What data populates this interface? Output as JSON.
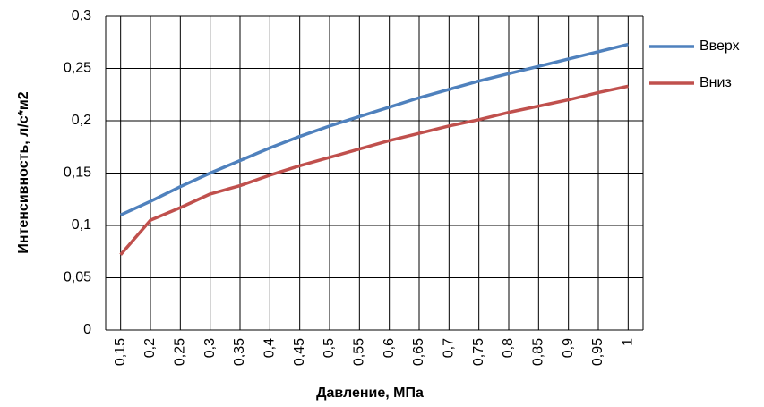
{
  "chart_data": {
    "type": "line",
    "x_label": "Давление, МПа",
    "y_label": "Интенсивность, л/с*м2",
    "categories": [
      "0,15",
      "0,2",
      "0,25",
      "0,3",
      "0,35",
      "0,4",
      "0,45",
      "0,5",
      "0,55",
      "0,6",
      "0,65",
      "0,7",
      "0,75",
      "0,8",
      "0,85",
      "0,9",
      "0,95",
      "1"
    ],
    "series": [
      {
        "name": "Вверх",
        "color": "#4f81bd",
        "values": [
          0.11,
          0.123,
          0.137,
          0.15,
          0.162,
          0.174,
          0.185,
          0.195,
          0.204,
          0.213,
          0.222,
          0.23,
          0.238,
          0.245,
          0.252,
          0.259,
          0.266,
          0.273
        ]
      },
      {
        "name": "Вниз",
        "color": "#c0504d",
        "values": [
          0.072,
          0.105,
          0.117,
          0.13,
          0.138,
          0.148,
          0.157,
          0.165,
          0.173,
          0.181,
          0.188,
          0.195,
          0.201,
          0.208,
          0.214,
          0.22,
          0.227,
          0.233
        ]
      }
    ],
    "ylim": [
      0,
      0.3
    ],
    "yticks": [
      0,
      {
        "value": 0.05,
        "label": "0,05"
      },
      {
        "value": 0.1,
        "label": "0,1"
      },
      {
        "value": 0.15,
        "label": "0,15"
      },
      {
        "value": 0.2,
        "label": "0,2"
      },
      {
        "value": 0.25,
        "label": "0,25"
      },
      {
        "value": 0.3,
        "label": "0,3"
      }
    ],
    "grid": true,
    "legend": "right"
  }
}
